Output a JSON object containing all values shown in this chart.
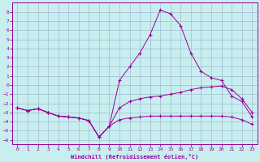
{
  "xlabel": "Windchill (Refroidissement éolien,°C)",
  "background_color": "#c8eef0",
  "grid_color": "#9ab0c8",
  "line_color": "#990099",
  "x_values": [
    0,
    1,
    2,
    3,
    4,
    5,
    6,
    7,
    8,
    9,
    10,
    11,
    12,
    13,
    14,
    15,
    16,
    17,
    18,
    19,
    20,
    21,
    22,
    23
  ],
  "line1": [
    -2.5,
    -2.8,
    -2.6,
    -3.0,
    -3.4,
    -3.5,
    -3.6,
    -3.9,
    -5.7,
    -4.5,
    -3.8,
    -3.6,
    -3.5,
    -3.4,
    -3.4,
    -3.4,
    -3.4,
    -3.4,
    -3.4,
    -3.4,
    -3.4,
    -3.5,
    -3.8,
    -4.3
  ],
  "line2": [
    -2.5,
    -2.8,
    -2.6,
    -3.0,
    -3.4,
    -3.5,
    -3.6,
    -3.9,
    -5.7,
    -4.5,
    -2.5,
    -1.8,
    -1.5,
    -1.3,
    -1.2,
    -1.0,
    -0.8,
    -0.5,
    -0.3,
    -0.2,
    -0.1,
    -0.5,
    -1.5,
    -3.0
  ],
  "line3": [
    -2.5,
    -2.8,
    -2.6,
    -3.0,
    -3.4,
    -3.5,
    -3.6,
    -3.9,
    -5.7,
    -4.5,
    0.5,
    2.0,
    3.5,
    5.5,
    8.2,
    7.8,
    6.5,
    3.5,
    1.5,
    0.8,
    0.5,
    -1.2,
    -1.8,
    -3.5
  ],
  "ylim": [
    -6.5,
    9.0
  ],
  "yticks": [
    -6,
    -5,
    -4,
    -3,
    -2,
    -1,
    0,
    1,
    2,
    3,
    4,
    5,
    6,
    7,
    8
  ],
  "xlim": [
    -0.5,
    23.5
  ],
  "xticks": [
    0,
    1,
    2,
    3,
    4,
    5,
    6,
    7,
    8,
    9,
    10,
    11,
    12,
    13,
    14,
    15,
    16,
    17,
    18,
    19,
    20,
    21,
    22,
    23
  ],
  "figsize": [
    3.2,
    2.0
  ],
  "dpi": 100
}
